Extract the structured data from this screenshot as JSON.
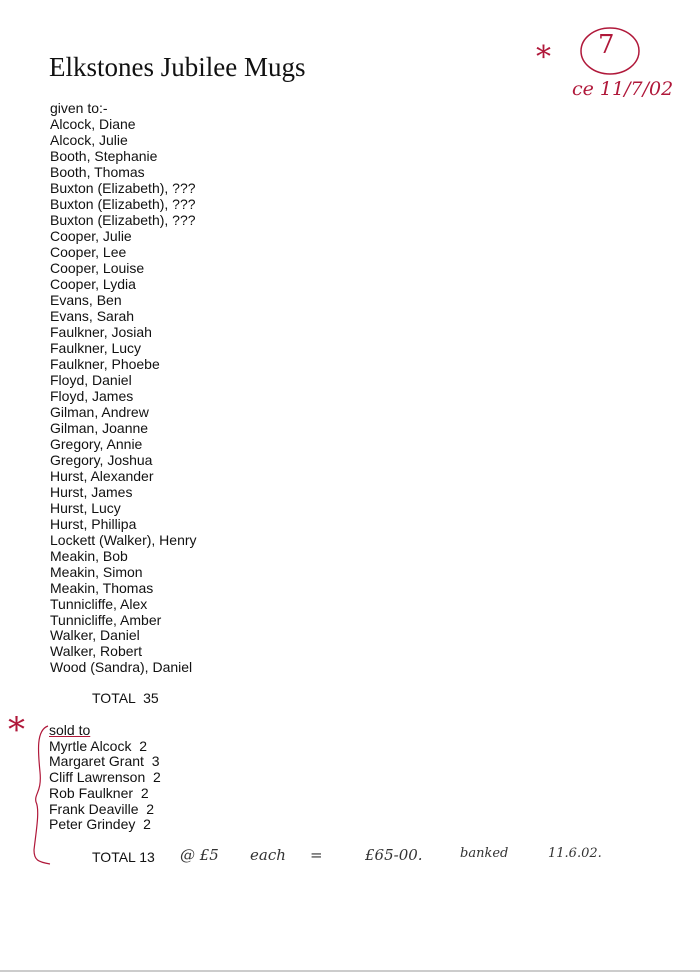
{
  "title": "Elkstones Jubilee Mugs",
  "annotation": {
    "number": "7",
    "initials_date": "ce 11/7/02",
    "asterisk": "*"
  },
  "given_to": {
    "heading": "given to:-",
    "names": [
      "Alcock, Diane",
      "Alcock, Julie",
      "Booth, Stephanie",
      "Booth, Thomas",
      "Buxton (Elizabeth), ???",
      "Buxton (Elizabeth), ???",
      "Buxton (Elizabeth), ???",
      "Cooper, Julie",
      "Cooper, Lee",
      "Cooper, Louise",
      "Cooper, Lydia",
      "Evans, Ben",
      "Evans, Sarah",
      "Faulkner, Josiah",
      "Faulkner, Lucy",
      "Faulkner, Phoebe",
      "Floyd, Daniel",
      "Floyd, James",
      "Gilman, Andrew",
      "Gilman, Joanne",
      "Gregory, Annie",
      "Gregory, Joshua",
      "Hurst, Alexander",
      "Hurst, James",
      "Hurst, Lucy",
      "Hurst, Phillipa",
      "Lockett (Walker), Henry",
      "Meakin, Bob",
      "Meakin, Simon",
      "Meakin, Thomas",
      "Tunnicliffe, Alex",
      "Tunnicliffe, Amber",
      "Walker, Daniel",
      "Walker, Robert",
      "Wood (Sandra), Daniel"
    ],
    "total": "TOTAL  35"
  },
  "sold_to": {
    "heading": "sold to",
    "buyers": [
      "Myrtle Alcock  2",
      "Margaret Grant  3",
      "Cliff Lawrenson  2",
      "Rob Faulkner  2",
      "Frank Deaville  2",
      "Peter Grindey  2"
    ],
    "total": "TOTAL 13",
    "handwritten": {
      "price": "@ £5",
      "each": "each",
      "equals": "=",
      "amount": "£65-00.",
      "banked": "banked",
      "date": "11.6.02."
    }
  }
}
